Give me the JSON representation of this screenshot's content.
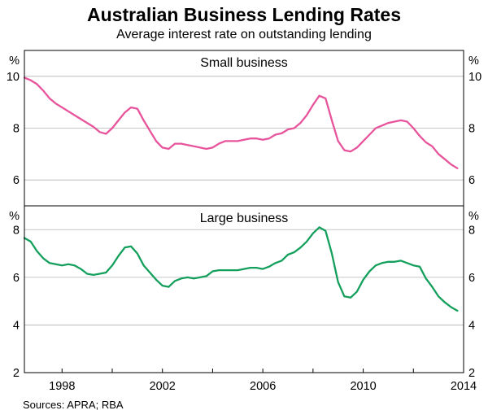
{
  "chart_data": {
    "type": "line",
    "title": "Australian Business Lending Rates",
    "subtitle": "Average interest rate on outstanding lending",
    "sources": "Sources: APRA; RBA",
    "xlabel": "",
    "ylabel": "%",
    "grid": "horizontal",
    "legend": "none",
    "x_range": [
      1996.5,
      2014
    ],
    "x_ticks": [
      1998,
      2002,
      2006,
      2010,
      2014
    ],
    "x": [
      1996.5,
      1996.75,
      1997,
      1997.25,
      1997.5,
      1997.75,
      1998,
      1998.25,
      1998.5,
      1998.75,
      1999,
      1999.25,
      1999.5,
      1999.75,
      2000,
      2000.25,
      2000.5,
      2000.75,
      2001,
      2001.25,
      2001.5,
      2001.75,
      2002,
      2002.25,
      2002.5,
      2002.75,
      2003,
      2003.25,
      2003.5,
      2003.75,
      2004,
      2004.25,
      2004.5,
      2004.75,
      2005,
      2005.25,
      2005.5,
      2005.75,
      2006,
      2006.25,
      2006.5,
      2006.75,
      2007,
      2007.25,
      2007.5,
      2007.75,
      2008,
      2008.25,
      2008.5,
      2008.75,
      2009,
      2009.25,
      2009.5,
      2009.75,
      2010,
      2010.25,
      2010.5,
      2010.75,
      2011,
      2011.25,
      2011.5,
      2011.75,
      2012,
      2012.25,
      2012.5,
      2012.75,
      2013,
      2013.25,
      2013.5,
      2013.75
    ],
    "panels": [
      {
        "name": "small-business",
        "label": "Small business",
        "unit": "%",
        "color": "#e8549b",
        "ylim": [
          5,
          11
        ],
        "yticks": [
          6,
          8,
          10
        ],
        "values": [
          9.95,
          9.85,
          9.7,
          9.45,
          9.15,
          8.95,
          8.8,
          8.65,
          8.5,
          8.35,
          8.2,
          8.05,
          7.85,
          7.78,
          8.0,
          8.3,
          8.6,
          8.8,
          8.75,
          8.3,
          7.9,
          7.5,
          7.25,
          7.2,
          7.4,
          7.4,
          7.35,
          7.3,
          7.25,
          7.2,
          7.25,
          7.4,
          7.5,
          7.5,
          7.5,
          7.55,
          7.6,
          7.6,
          7.55,
          7.6,
          7.75,
          7.8,
          7.95,
          8.0,
          8.2,
          8.5,
          8.9,
          9.25,
          9.15,
          8.3,
          7.5,
          7.15,
          7.1,
          7.25,
          7.5,
          7.75,
          8.0,
          8.1,
          8.2,
          8.25,
          8.3,
          8.25,
          8.0,
          7.7,
          7.45,
          7.3,
          7.0,
          6.8,
          6.6,
          6.45
        ]
      },
      {
        "name": "large-business",
        "label": "Large business",
        "unit": "%",
        "color": "#14a05c",
        "ylim": [
          2,
          9
        ],
        "yticks": [
          2,
          4,
          6,
          8
        ],
        "values": [
          7.65,
          7.5,
          7.1,
          6.8,
          6.6,
          6.55,
          6.5,
          6.55,
          6.5,
          6.35,
          6.15,
          6.1,
          6.15,
          6.2,
          6.5,
          6.9,
          7.25,
          7.3,
          7.0,
          6.5,
          6.2,
          5.9,
          5.65,
          5.6,
          5.85,
          5.95,
          6.0,
          5.95,
          6.0,
          6.05,
          6.25,
          6.3,
          6.3,
          6.3,
          6.3,
          6.35,
          6.4,
          6.4,
          6.35,
          6.45,
          6.6,
          6.7,
          6.95,
          7.05,
          7.25,
          7.5,
          7.85,
          8.1,
          7.95,
          7.0,
          5.8,
          5.2,
          5.15,
          5.4,
          5.9,
          6.25,
          6.5,
          6.6,
          6.65,
          6.65,
          6.7,
          6.6,
          6.5,
          6.45,
          5.95,
          5.6,
          5.2,
          4.95,
          4.75,
          4.6
        ]
      }
    ]
  }
}
